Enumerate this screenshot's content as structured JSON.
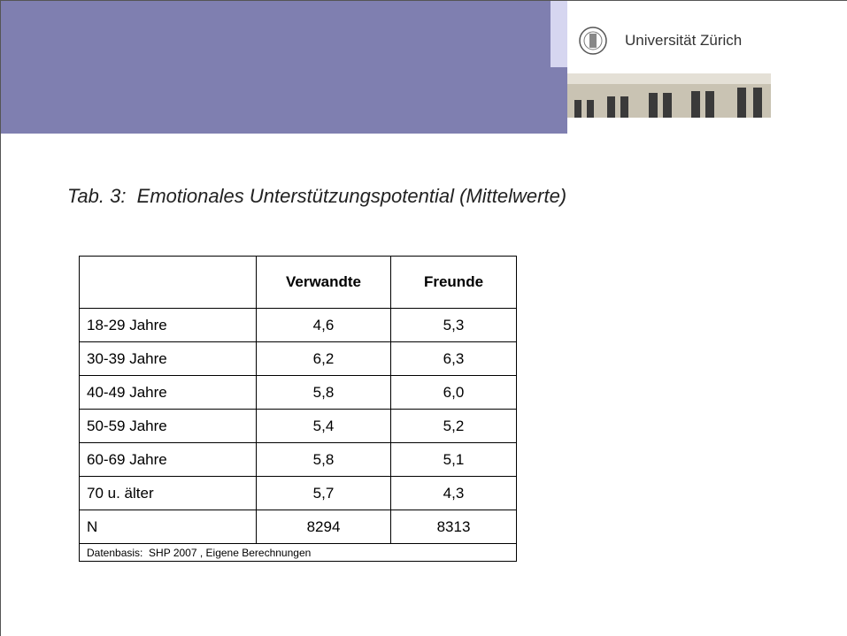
{
  "header": {
    "logo_text": "Universität Zürich"
  },
  "title": "Tab. 3:  Emotionales Unterstützungspotential (Mittelwerte)",
  "table": {
    "columns": [
      "Verwandte",
      "Freunde"
    ],
    "rows": [
      [
        "18-29 Jahre",
        "4,6",
        "5,3"
      ],
      [
        "30-39 Jahre",
        "6,2",
        "6,3"
      ],
      [
        "40-49 Jahre",
        "5,8",
        "6,0"
      ],
      [
        "50-59 Jahre",
        "5,4",
        "5,2"
      ],
      [
        "60-69 Jahre",
        "5,8",
        "5,1"
      ],
      [
        "70 u. älter",
        "5,7",
        "4,3"
      ],
      [
        "N",
        "8294",
        "8313"
      ]
    ],
    "footnote": "Datenbasis:  SHP 2007 , Eigene Berechnungen"
  }
}
